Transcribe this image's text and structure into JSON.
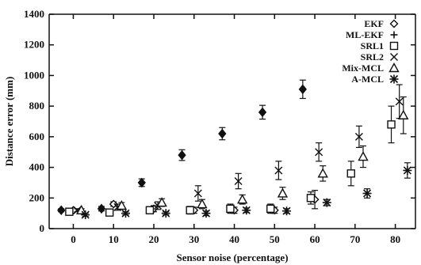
{
  "chart_data": {
    "type": "scatter",
    "title": "",
    "xlabel": "Sensor noise (percentage)",
    "ylabel": "Distance error (mm)",
    "xlim": [
      -6,
      85
    ],
    "ylim": [
      0,
      1400
    ],
    "x_ticks": [
      0,
      10,
      20,
      30,
      40,
      50,
      60,
      70,
      80
    ],
    "y_ticks": [
      0,
      200,
      400,
      600,
      800,
      1000,
      1200,
      1400
    ],
    "grid": false,
    "legend": "top-right",
    "series": [
      {
        "name": "EKF",
        "marker": "diamond-open",
        "offset": 0,
        "values": [
          120,
          160,
          130,
          120,
          120,
          120,
          190,
          null,
          null
        ],
        "errors": [
          10,
          15,
          20,
          20,
          20,
          20,
          60,
          null,
          null
        ]
      },
      {
        "name": "ML-EKF",
        "marker": "diamond-filled",
        "offset": -3,
        "values": [
          120,
          130,
          300,
          480,
          620,
          760,
          910,
          null,
          null
        ],
        "errors": [
          10,
          15,
          25,
          35,
          40,
          45,
          60,
          null,
          null
        ]
      },
      {
        "name": "SRL1",
        "marker": "square",
        "offset": -1,
        "values": [
          110,
          105,
          120,
          120,
          130,
          130,
          200,
          360,
          680
        ],
        "errors": [
          10,
          15,
          20,
          25,
          30,
          30,
          40,
          80,
          120
        ]
      },
      {
        "name": "SRL2",
        "marker": "cross",
        "offset": 1,
        "values": [
          120,
          140,
          150,
          230,
          310,
          380,
          500,
          600,
          830
        ],
        "errors": [
          10,
          20,
          25,
          50,
          50,
          60,
          60,
          70,
          110
        ]
      },
      {
        "name": "Mix-MCL",
        "marker": "triangle",
        "offset": 2,
        "values": [
          120,
          150,
          170,
          160,
          190,
          230,
          360,
          470,
          740
        ],
        "errors": [
          10,
          20,
          25,
          30,
          30,
          40,
          50,
          70,
          120
        ]
      },
      {
        "name": "A-MCL",
        "marker": "star",
        "offset": 3,
        "values": [
          90,
          100,
          100,
          100,
          120,
          115,
          170,
          230,
          380
        ],
        "errors": [
          10,
          10,
          10,
          15,
          15,
          15,
          20,
          30,
          50
        ]
      }
    ]
  }
}
